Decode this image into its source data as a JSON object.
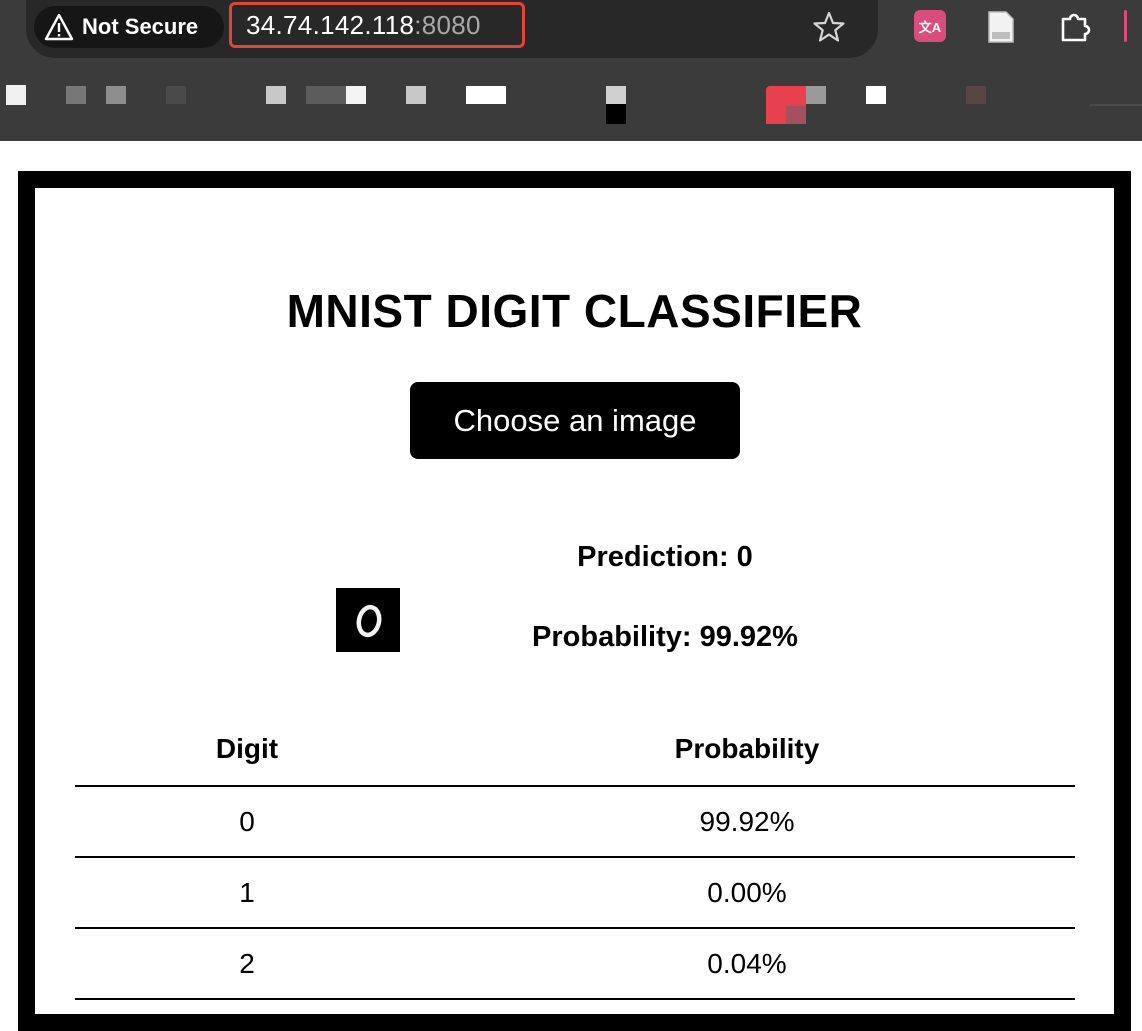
{
  "browser": {
    "security_label": "Not Secure",
    "url_host": "34.74.142.118",
    "url_port": ":8080",
    "extension_translate_label": "文A"
  },
  "app": {
    "title": "MNIST DIGIT CLASSIFIER",
    "choose_button_label": "Choose an image",
    "thumbnail_digit": "0",
    "prediction_text": "Prediction: 0",
    "probability_text": "Probability: 99.92%"
  },
  "table": {
    "headers": [
      "Digit",
      "Probability"
    ],
    "rows": [
      {
        "digit": "0",
        "probability": "99.92%"
      },
      {
        "digit": "1",
        "probability": "0.00%"
      },
      {
        "digit": "2",
        "probability": "0.04%"
      }
    ]
  },
  "colors": {
    "chrome_bg": "#3b3b3b",
    "url_highlight": "#e0453a",
    "page_border": "#000000",
    "button_bg": "#000000"
  }
}
